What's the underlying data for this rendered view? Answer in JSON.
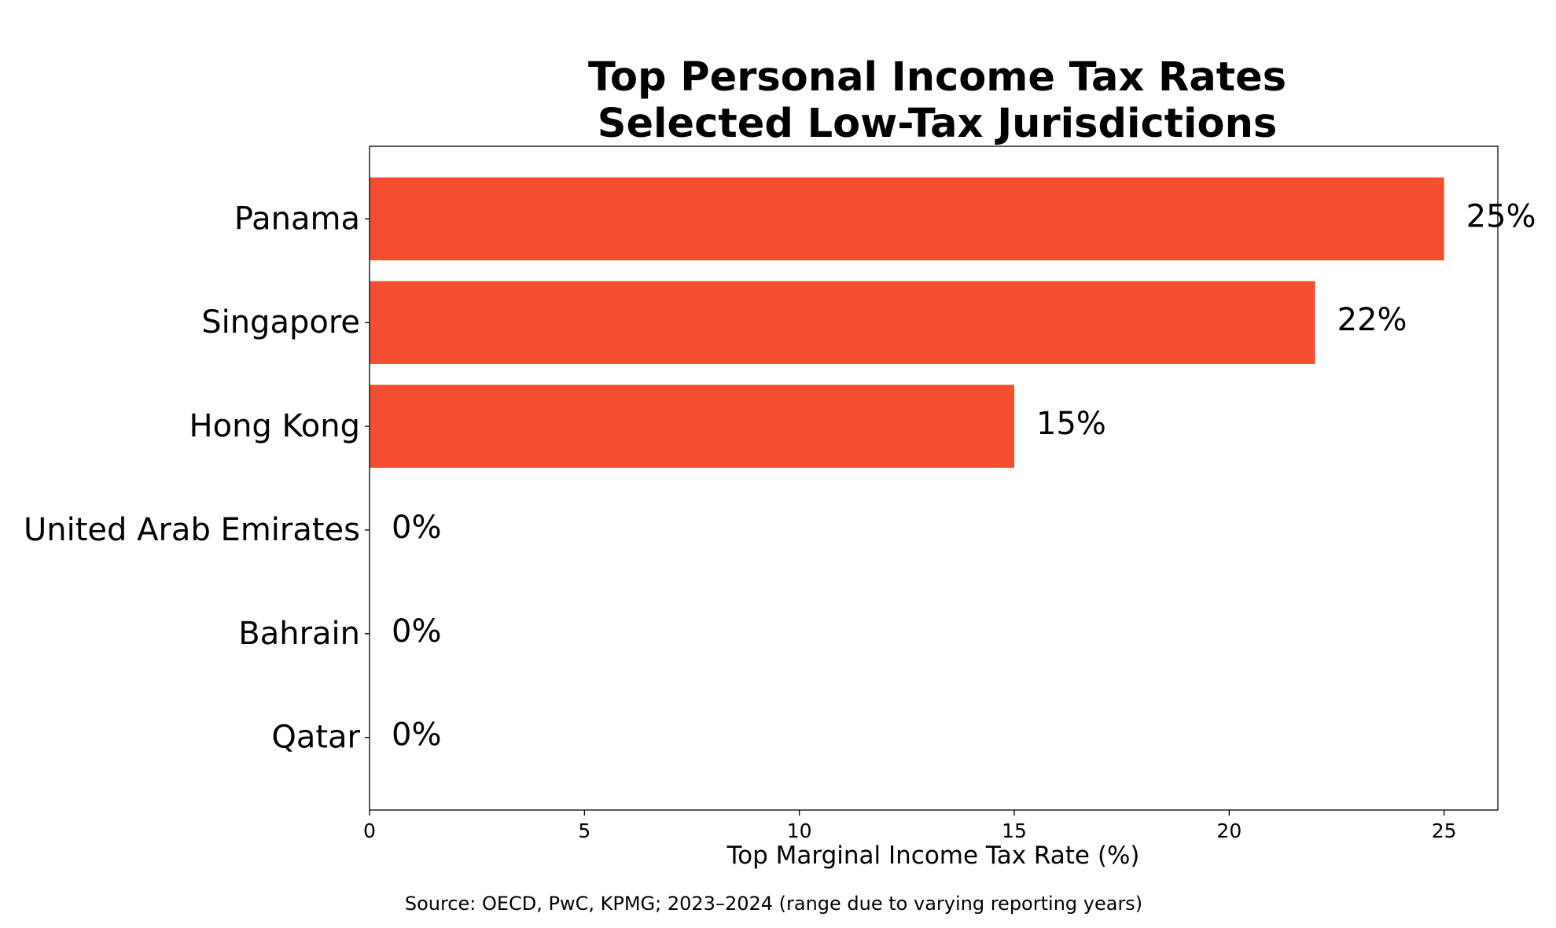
{
  "chart_data": {
    "type": "bar",
    "orientation": "horizontal",
    "title": [
      "Top Personal Income Tax Rates",
      "Selected Low-Tax Jurisdictions"
    ],
    "categories": [
      "Panama",
      "Singapore",
      "Hong Kong",
      "United Arab Emirates",
      "Bahrain",
      "Qatar"
    ],
    "values": [
      25,
      22,
      15,
      0,
      0,
      0
    ],
    "data_labels": [
      "25%",
      "22%",
      "15%",
      "0%",
      "0%",
      "0%"
    ],
    "xlabel": "Top Marginal Income Tax Rate (%)",
    "ylabel": "",
    "xlim": [
      0,
      26.25
    ],
    "xticks": [
      0,
      5,
      10,
      15,
      20,
      25
    ],
    "xtick_labels": [
      "0",
      "5",
      "10",
      "15",
      "20",
      "25"
    ],
    "grid": false,
    "bar_color": "#f44e30",
    "source": "Source: OECD, PwC, KPMG; 2023–2024 (range due to varying reporting years)"
  }
}
